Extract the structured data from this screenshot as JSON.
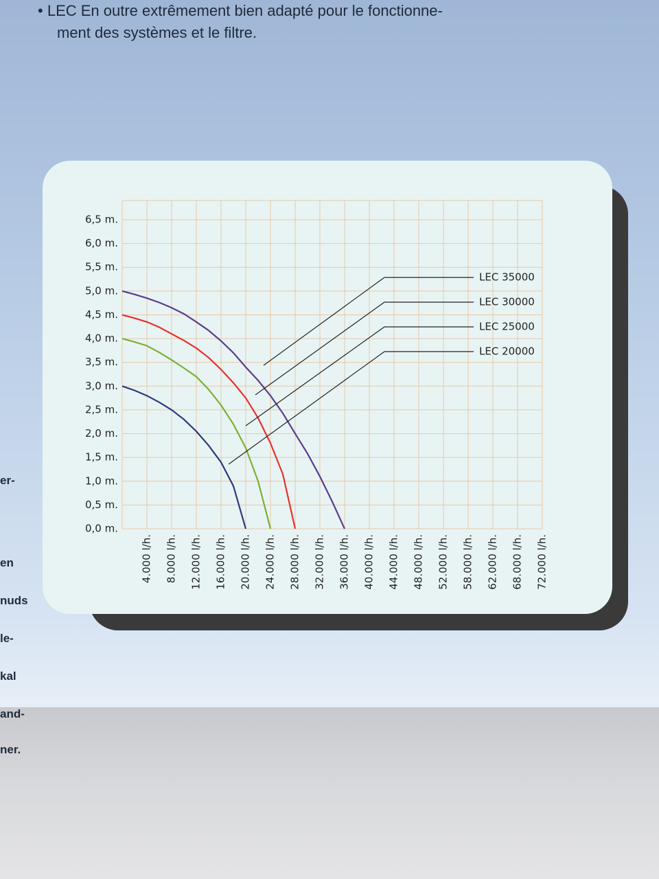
{
  "page_text": {
    "bullet": [
      "LEC En outre extrêmement bien adapté pour le fonctionne-",
      "ment des systèmes et le filtre."
    ],
    "side": [
      "er-",
      "en",
      "nuds",
      "le-",
      "kal",
      "and-",
      "ner."
    ]
  },
  "chart_data": {
    "type": "line",
    "x": [
      0,
      2000,
      4000,
      6000,
      8000,
      10000,
      12000,
      14000,
      16000,
      18000,
      20000,
      22000,
      24000,
      26000,
      28000,
      30000,
      32000,
      34000,
      36000
    ],
    "series": [
      {
        "name": "LEC 35000",
        "color": "#5b3c8c",
        "values": [
          5.0,
          4.93,
          4.85,
          4.76,
          4.65,
          4.52,
          4.35,
          4.17,
          3.95,
          3.7,
          3.4,
          3.12,
          2.8,
          2.43,
          2.0,
          1.58,
          1.1,
          0.57,
          0
        ]
      },
      {
        "name": "LEC 30000",
        "color": "#e8302a",
        "values": [
          4.5,
          4.43,
          4.35,
          4.24,
          4.1,
          3.96,
          3.8,
          3.6,
          3.35,
          3.07,
          2.75,
          2.33,
          1.8,
          1.15,
          0,
          null,
          null,
          null,
          null
        ]
      },
      {
        "name": "LEC 25000",
        "color": "#7ab030",
        "values": [
          4.0,
          3.93,
          3.85,
          3.71,
          3.55,
          3.38,
          3.2,
          2.93,
          2.6,
          2.2,
          1.7,
          1.0,
          0,
          null,
          null,
          null,
          null,
          null,
          null
        ]
      },
      {
        "name": "LEC 20000",
        "color": "#2a3a7a",
        "values": [
          3.0,
          2.91,
          2.8,
          2.66,
          2.5,
          2.3,
          2.05,
          1.75,
          1.4,
          0.9,
          0,
          null,
          null,
          null,
          null,
          null,
          null,
          null,
          null
        ]
      }
    ],
    "xlim": [
      0,
      72000
    ],
    "xticks": [
      {
        "value": 4000,
        "label": "4.000 l/h."
      },
      {
        "value": 8000,
        "label": "8.000 l/h."
      },
      {
        "value": 12000,
        "label": "12.000 l/h."
      },
      {
        "value": 16000,
        "label": "16.000 l/h."
      },
      {
        "value": 20000,
        "label": "20.000 l/h."
      },
      {
        "value": 24000,
        "label": "24.000 l/h."
      },
      {
        "value": 28000,
        "label": "28.000 l/h."
      },
      {
        "value": 32000,
        "label": "32.000 l/h."
      },
      {
        "value": 36000,
        "label": "36.000 l/h."
      },
      {
        "value": 40000,
        "label": "40.000 l/h."
      },
      {
        "value": 44000,
        "label": "44.000 l/h."
      },
      {
        "value": 48000,
        "label": "48.000 l/h."
      },
      {
        "value": 52000,
        "label": "52.000 l/h."
      },
      {
        "value": 58000,
        "label": "58.000 l/h."
      },
      {
        "value": 62000,
        "label": "62.000 l/h."
      },
      {
        "value": 68000,
        "label": "68.000 l/h."
      },
      {
        "value": 72000,
        "label": "72.000 l/h."
      }
    ],
    "ylim": [
      0,
      6.5
    ],
    "yticks": [
      {
        "value": 0,
        "label": "0,0 m."
      },
      {
        "value": 0.5,
        "label": "0,5 m."
      },
      {
        "value": 1,
        "label": "1,0 m."
      },
      {
        "value": 1.5,
        "label": "1,5 m."
      },
      {
        "value": 2,
        "label": "2,0 m."
      },
      {
        "value": 2.5,
        "label": "2,5 m."
      },
      {
        "value": 3,
        "label": "3,0 m."
      },
      {
        "value": 3.5,
        "label": "3,5 m."
      },
      {
        "value": 4,
        "label": "4,0 m."
      },
      {
        "value": 4.5,
        "label": "4,5 m."
      },
      {
        "value": 5,
        "label": "5,0 m."
      },
      {
        "value": 5.5,
        "label": "5,5 m."
      },
      {
        "value": 6,
        "label": "6,0 m."
      },
      {
        "value": 6.5,
        "label": "6,5 m."
      }
    ],
    "grid": true
  }
}
